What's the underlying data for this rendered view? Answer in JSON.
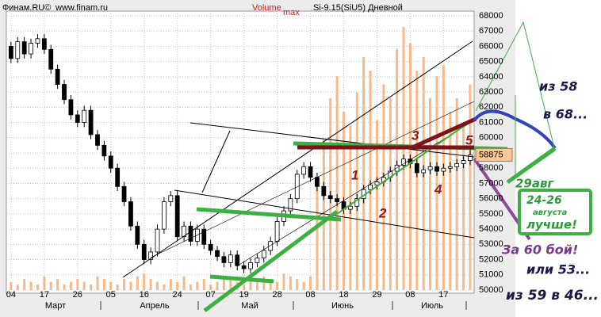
{
  "header": {
    "source": "Финам.RU©",
    "site": "www.finam.ru",
    "volume_label": "Volume",
    "max_label": "max",
    "instrument": "Si-9.15(SiU5) Дневной"
  },
  "chart_data": {
    "type": "candlestick",
    "xlim": [
      -0.7,
      69.6
    ],
    "ylim": [
      50000,
      68000
    ],
    "yticks": [
      50000,
      51000,
      52000,
      53000,
      54000,
      55000,
      56000,
      57000,
      58000,
      59000,
      60000,
      61000,
      62000,
      63000,
      64000,
      65000,
      66000,
      67000,
      68000
    ],
    "xticks": [
      {
        "value": 0,
        "label": "04"
      },
      {
        "value": 5,
        "label": "17"
      },
      {
        "value": 10,
        "label": "26"
      },
      {
        "value": 15,
        "label": "05"
      },
      {
        "value": 20,
        "label": "16"
      },
      {
        "value": 25,
        "label": "24"
      },
      {
        "value": 30,
        "label": "07"
      },
      {
        "value": 35,
        "label": "19"
      },
      {
        "value": 40,
        "label": "28"
      },
      {
        "value": 45,
        "label": "08"
      },
      {
        "value": 50,
        "label": "18"
      },
      {
        "value": 55,
        "label": "29"
      },
      {
        "value": 60,
        "label": "08"
      },
      {
        "value": 65,
        "label": "17"
      }
    ],
    "months": [
      "Март",
      "Апрель",
      "Май",
      "Июнь",
      "Июль"
    ],
    "grid": true,
    "up_color": "#ffffff",
    "down_color": "#000000",
    "x": [
      0,
      1,
      2,
      3,
      4,
      5,
      6,
      7,
      8,
      9,
      10,
      11,
      12,
      13,
      14,
      15,
      16,
      17,
      18,
      19,
      20,
      21,
      22,
      23,
      24,
      25,
      26,
      27,
      28,
      29,
      30,
      31,
      32,
      33,
      34,
      35,
      36,
      37,
      38,
      39,
      40,
      41,
      42,
      43,
      44,
      45,
      46,
      47,
      48,
      49,
      50,
      51,
      52,
      53,
      54,
      55,
      56,
      57,
      58,
      59,
      60,
      61,
      62,
      63,
      64,
      65,
      66,
      67,
      68,
      69
    ],
    "candles": [
      [
        66000,
        66300,
        64900,
        65200
      ],
      [
        65200,
        66600,
        64900,
        66300
      ],
      [
        66300,
        66600,
        65200,
        65500
      ],
      [
        65500,
        66500,
        65200,
        66200
      ],
      [
        66200,
        66800,
        65900,
        66500
      ],
      [
        66500,
        66800,
        65500,
        65800
      ],
      [
        65800,
        66100,
        64200,
        64500
      ],
      [
        64500,
        64800,
        63200,
        63500
      ],
      [
        63500,
        63800,
        62200,
        62500
      ],
      [
        62500,
        62800,
        61200,
        61500
      ],
      [
        61500,
        61800,
        60700,
        61000
      ],
      [
        61000,
        62100,
        60700,
        61800
      ],
      [
        61800,
        62100,
        59900,
        60200
      ],
      [
        60200,
        60500,
        59200,
        59500
      ],
      [
        59500,
        59800,
        58500,
        58800
      ],
      [
        58800,
        59100,
        57700,
        58000
      ],
      [
        58000,
        58300,
        56500,
        56800
      ],
      [
        56800,
        57100,
        55500,
        55800
      ],
      [
        55800,
        56100,
        53900,
        54200
      ],
      [
        54200,
        54500,
        52700,
        53000
      ],
      [
        53000,
        53300,
        51700,
        52000
      ],
      [
        52000,
        52800,
        51700,
        52500
      ],
      [
        52500,
        54300,
        52200,
        54000
      ],
      [
        54000,
        56100,
        53700,
        55800
      ],
      [
        55800,
        56500,
        55500,
        56200
      ],
      [
        56200,
        56500,
        53200,
        53500
      ],
      [
        53500,
        54500,
        53200,
        54200
      ],
      [
        54200,
        54500,
        52900,
        53200
      ],
      [
        53200,
        54300,
        52900,
        54000
      ],
      [
        54000,
        54300,
        52700,
        53000
      ],
      [
        53000,
        53300,
        52300,
        52600
      ],
      [
        52600,
        52900,
        51900,
        52200
      ],
      [
        52200,
        52500,
        51500,
        51800
      ],
      [
        51800,
        52600,
        51500,
        52300
      ],
      [
        52300,
        52600,
        51300,
        51600
      ],
      [
        51600,
        51900,
        51100,
        51400
      ],
      [
        51400,
        52100,
        51100,
        51800
      ],
      [
        51800,
        52400,
        51500,
        52100
      ],
      [
        52100,
        52900,
        51800,
        52600
      ],
      [
        52600,
        53500,
        52300,
        53200
      ],
      [
        53200,
        54800,
        52900,
        54500
      ],
      [
        54500,
        55500,
        54200,
        55200
      ],
      [
        55200,
        56300,
        54900,
        56000
      ],
      [
        56000,
        57900,
        55700,
        57600
      ],
      [
        57600,
        58400,
        57300,
        58100
      ],
      [
        58100,
        58400,
        57100,
        57400
      ],
      [
        57400,
        57700,
        56500,
        56800
      ],
      [
        56800,
        57100,
        55900,
        56200
      ],
      [
        56200,
        56500,
        55700,
        56000
      ],
      [
        56000,
        56300,
        55500,
        55800
      ],
      [
        55800,
        56100,
        55000,
        55300
      ],
      [
        55300,
        55800,
        55000,
        55500
      ],
      [
        55500,
        56300,
        55200,
        56000
      ],
      [
        56000,
        56900,
        55700,
        56600
      ],
      [
        56600,
        57200,
        56300,
        56900
      ],
      [
        56900,
        57400,
        56600,
        57100
      ],
      [
        57100,
        57700,
        56800,
        57400
      ],
      [
        57400,
        58100,
        57100,
        57800
      ],
      [
        57800,
        58500,
        57500,
        58200
      ],
      [
        58200,
        58900,
        57900,
        58600
      ],
      [
        58600,
        58900,
        58000,
        58300
      ],
      [
        58300,
        58600,
        57400,
        57700
      ],
      [
        57700,
        58200,
        57400,
        57900
      ],
      [
        57900,
        58400,
        57600,
        58100
      ],
      [
        58100,
        58400,
        57500,
        57800
      ],
      [
        57800,
        58300,
        57500,
        58000
      ],
      [
        58000,
        58400,
        57700,
        58100
      ],
      [
        58100,
        58600,
        57800,
        58300
      ],
      [
        58300,
        58800,
        58000,
        58500
      ],
      [
        58500,
        59200,
        58200,
        58875
      ]
    ],
    "volume": {
      "color": "#f5b98a",
      "ylim": [
        0,
        100
      ],
      "values": [
        3,
        2,
        4,
        3,
        2,
        5,
        3,
        4,
        2,
        3,
        4,
        3,
        2,
        5,
        4,
        3,
        2,
        4,
        3,
        5,
        6,
        4,
        3,
        2,
        4,
        3,
        5,
        2,
        3,
        4,
        2,
        3,
        4,
        5,
        3,
        2,
        4,
        3,
        5,
        4,
        3,
        6,
        5,
        4,
        3,
        5,
        40,
        55,
        70,
        78,
        65,
        60,
        72,
        85,
        80,
        62,
        75,
        70,
        88,
        96,
        90,
        80,
        85,
        70,
        78,
        82,
        65,
        70,
        60,
        75
      ]
    },
    "last_price": 58875,
    "wave_labels": [
      "1",
      "2",
      "3",
      "4",
      "5"
    ]
  },
  "annotations": {
    "from58": "из 58",
    "to68": "в 68...",
    "aug29": "29авг",
    "range": "24-26",
    "august": "августа",
    "better": "лучше!",
    "fight60": "За 60 бой!",
    "or53": "или 53...",
    "from59to46": "из 59 в 46..."
  }
}
